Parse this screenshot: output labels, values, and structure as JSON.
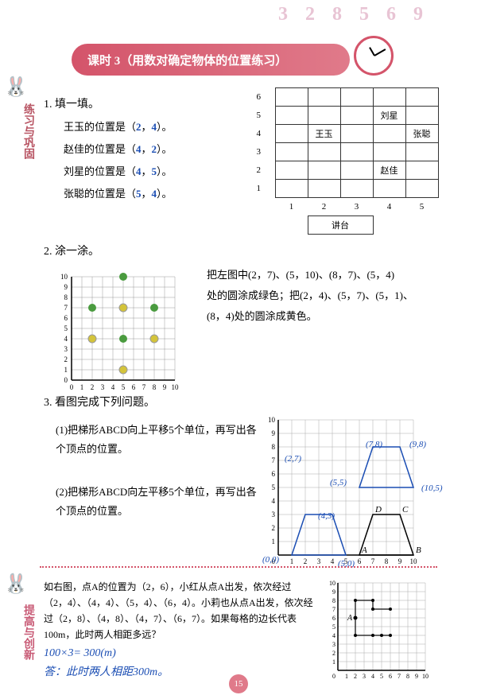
{
  "header_deco": "3 2 8 5 6 9",
  "lesson_title": "课时 3（用数对确定物体的位置练习）",
  "side_label_top": "练习与巩固",
  "side_label_bottom": "提高与创新",
  "q1": {
    "num": "1. 填一填。",
    "lines": [
      {
        "name": "王玉的位置是（",
        "a": "2",
        "m": "，",
        "b": "4",
        "end": "）。"
      },
      {
        "name": "赵佳的位置是（",
        "a": "4",
        "m": "，",
        "b": "2",
        "end": "）。"
      },
      {
        "name": "刘星的位置是（",
        "a": "4",
        "m": "，",
        "b": "5",
        "end": "）。"
      },
      {
        "name": "张聪的位置是（",
        "a": "5",
        "m": "，",
        "b": "4",
        "end": "）。"
      }
    ],
    "grid_rows": [
      "6",
      "5",
      "4",
      "3",
      "2",
      "1"
    ],
    "grid_cols": [
      "1",
      "2",
      "3",
      "4",
      "5"
    ],
    "podium": "讲台",
    "names": {
      "liuxing": "刘星",
      "wangyu": "王玉",
      "zhangcong": "张聪",
      "zhaojia": "赵佳"
    }
  },
  "q2": {
    "num": "2. 涂一涂。",
    "text1": "把左图中(2，7)、(5，10)、(8，7)、(5，4)",
    "text2": "处的圆涂成绿色；把(2，4)、(5，7)、(5，1)、",
    "text3": "(8，4)处的圆涂成黄色。",
    "axis_max": 10,
    "green_points": [
      [
        2,
        7
      ],
      [
        5,
        10
      ],
      [
        8,
        7
      ],
      [
        5,
        4
      ]
    ],
    "yellow_points": [
      [
        2,
        4
      ],
      [
        5,
        7
      ],
      [
        5,
        1
      ],
      [
        8,
        4
      ]
    ],
    "colors": {
      "green": "#4a9b3f",
      "yellow": "#d4c43a"
    }
  },
  "q3": {
    "num": "3. 看图完成下列问题。",
    "sub1": "(1)把梯形ABCD向上平移5个单位，再写出各个顶点的位置。",
    "sub2": "(2)把梯形ABCD向左平移5个单位，再写出各个顶点的位置。",
    "axis_max": 10,
    "labels": {
      "A": "A",
      "B": "B",
      "C": "C",
      "D": "D"
    },
    "coords": {
      "c78": "(7,8)",
      "c98": "(9,8)",
      "c105": "(10,5)",
      "c27": "(2,7)",
      "c55": "(5,5)",
      "c43": "(4,3)",
      "c00": "(0,0)",
      "c50": "(5,0)"
    }
  },
  "q4": {
    "text1": "如右图，点A的位置为（2，6），小红从点A出发，依次经过（2，4）、（4，4）、（5，4）、（6，4）。小莉也从点A出发，依次经过（2，8）、（4，8）、（4，7）、（6，7）。如果每格的边长代表100m，此时两人相距多远？",
    "ans1": "100×3= 300(m)",
    "ans2": "答：此时两人相距300m。",
    "axis_max": 10
  },
  "page": "15"
}
